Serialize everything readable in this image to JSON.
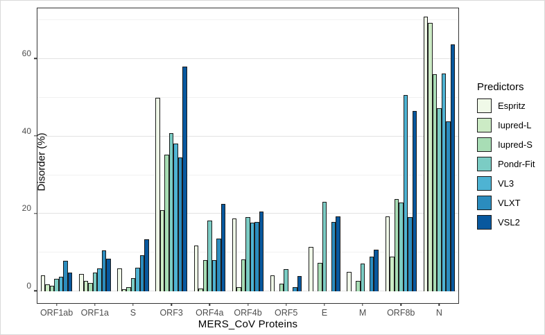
{
  "chart_data": {
    "type": "bar",
    "title": "",
    "xlabel": "MERS_CoV Proteins",
    "ylabel": "Disorder (%)",
    "legend_title": "Predictors",
    "legend_position": "right",
    "grid": true,
    "ylim": [
      0,
      74
    ],
    "y_major_ticks": [
      0,
      20,
      40,
      60
    ],
    "y_minor_ticks": [
      10,
      30,
      50,
      70
    ],
    "categories": [
      "ORF1ab",
      "ORF1a",
      "S",
      "ORF3",
      "ORF4a",
      "ORF4b",
      "ORF5",
      "E",
      "M",
      "ORF8b",
      "N"
    ],
    "series": [
      {
        "name": "Espritz",
        "color": "#F0F9E8",
        "values": [
          4.2,
          4.5,
          6.0,
          50.0,
          11.9,
          18.8,
          4.1,
          11.4,
          5.0,
          19.4,
          70.9
        ]
      },
      {
        "name": "Iupred-L",
        "color": "#CCEBC5",
        "values": [
          1.8,
          2.7,
          0.5,
          21.0,
          0.7,
          1.0,
          0,
          0,
          0,
          9.0,
          69.4
        ]
      },
      {
        "name": "Iupred-S",
        "color": "#A8DDB5",
        "values": [
          1.4,
          2.1,
          1.0,
          35.3,
          8.1,
          8.2,
          2.0,
          7.3,
          2.7,
          23.9,
          56.1
        ]
      },
      {
        "name": "Pondr-Fit",
        "color": "#7BCCC4",
        "values": [
          3.3,
          4.9,
          3.4,
          40.8,
          18.2,
          19.1,
          5.8,
          23.1,
          7.2,
          23.0,
          47.2
        ]
      },
      {
        "name": "VL3",
        "color": "#4EB3D3",
        "values": [
          3.7,
          5.9,
          6.1,
          38.2,
          8.1,
          17.7,
          0,
          0,
          0,
          50.7,
          56.3
        ]
      },
      {
        "name": "VLXT",
        "color": "#2B8CBE",
        "values": [
          7.9,
          10.5,
          9.3,
          34.5,
          13.6,
          18.0,
          1.0,
          18.0,
          9.0,
          19.2,
          43.8
        ]
      },
      {
        "name": "VSL2",
        "color": "#08589E",
        "values": [
          4.8,
          8.4,
          13.4,
          58.0,
          22.6,
          20.6,
          4.0,
          19.4,
          10.7,
          46.5,
          63.7
        ]
      }
    ]
  }
}
